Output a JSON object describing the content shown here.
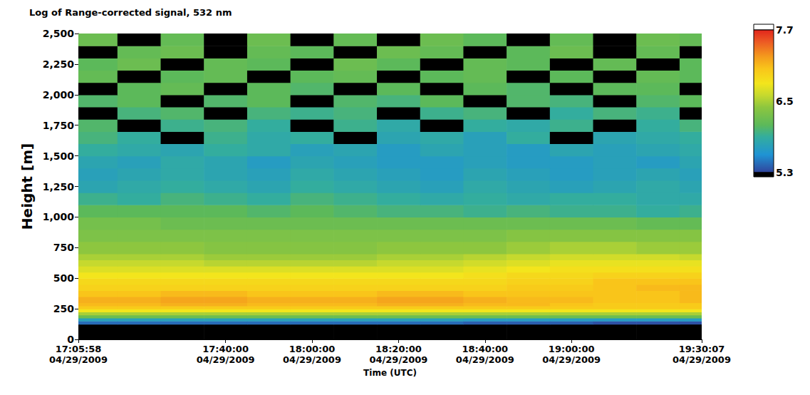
{
  "chart_data": {
    "type": "heatmap",
    "title": "Log of Range-corrected signal, 532 nm",
    "x_label": "Time (UTC)",
    "y_label": "Height [m]",
    "grid": false,
    "xlim": [
      "2009-04-29T17:05:58Z",
      "2009-04-29T19:30:07Z"
    ],
    "xticks": [
      {
        "value": "2009-04-29T17:05:58Z",
        "label": "17:05:58\n04/29/2009"
      },
      {
        "value": "2009-04-29T17:40:00Z",
        "label": "17:40:00\n04/29/2009"
      },
      {
        "value": "2009-04-29T18:00:00Z",
        "label": "18:00:00\n04/29/2009"
      },
      {
        "value": "2009-04-29T18:20:00Z",
        "label": "18:20:00\n04/29/2009"
      },
      {
        "value": "2009-04-29T18:40:00Z",
        "label": "18:40:00\n04/29/2009"
      },
      {
        "value": "2009-04-29T19:00:00Z",
        "label": "19:00:00\n04/29/2009"
      },
      {
        "value": "2009-04-29T19:30:07Z",
        "label": "19:30:07\n04/29/2009"
      }
    ],
    "ylim": [
      0,
      2500
    ],
    "yticks": [
      0,
      250,
      500,
      750,
      1000,
      1250,
      1500,
      1750,
      2000,
      2250,
      2500
    ],
    "x": [
      "2009-04-29T17:05:58Z",
      "2009-04-29T17:15:00Z",
      "2009-04-29T17:25:00Z",
      "2009-04-29T17:35:00Z",
      "2009-04-29T17:45:00Z",
      "2009-04-29T17:55:00Z",
      "2009-04-29T18:05:00Z",
      "2009-04-29T18:15:00Z",
      "2009-04-29T18:25:00Z",
      "2009-04-29T18:35:00Z",
      "2009-04-29T18:45:00Z",
      "2009-04-29T18:55:00Z",
      "2009-04-29T19:05:00Z",
      "2009-04-29T19:15:00Z",
      "2009-04-29T19:25:00Z"
    ],
    "y": [
      0,
      125,
      150,
      175,
      200,
      225,
      250,
      275,
      300,
      350,
      400,
      450,
      500,
      550,
      600,
      650,
      700,
      800,
      900,
      1000,
      1100,
      1200,
      1300,
      1400,
      1500,
      1600,
      1700,
      1800,
      1900,
      2000,
      2100,
      2200,
      2300,
      2400
    ],
    "cells": [
      [
        5.0,
        5.0,
        5.0,
        5.0,
        5.0,
        5.0,
        5.0,
        5.0,
        5.0,
        5.0,
        5.0,
        5.0,
        5.0,
        5.0,
        5.0
      ],
      [
        5.45,
        5.45,
        5.45,
        5.45,
        5.45,
        5.45,
        5.45,
        5.45,
        5.45,
        5.4,
        5.4,
        5.4,
        5.35,
        5.35,
        5.35
      ],
      [
        5.75,
        5.75,
        5.75,
        5.75,
        5.75,
        5.75,
        5.75,
        5.75,
        5.75,
        5.7,
        5.7,
        5.7,
        5.7,
        5.7,
        5.7
      ],
      [
        6.2,
        6.2,
        6.2,
        6.2,
        6.2,
        6.2,
        6.2,
        6.2,
        6.2,
        6.2,
        6.2,
        6.2,
        6.2,
        6.2,
        6.2
      ],
      [
        6.5,
        6.5,
        6.5,
        6.5,
        6.5,
        6.5,
        6.5,
        6.5,
        6.5,
        6.5,
        6.5,
        6.5,
        6.5,
        6.5,
        6.5
      ],
      [
        6.8,
        6.8,
        6.8,
        6.8,
        6.8,
        6.8,
        6.8,
        6.8,
        6.8,
        6.8,
        6.8,
        6.8,
        6.8,
        6.8,
        6.8
      ],
      [
        7.0,
        7.0,
        7.0,
        7.0,
        7.0,
        7.0,
        7.0,
        7.0,
        7.0,
        7.0,
        7.0,
        7.0,
        7.0,
        7.0,
        7.0
      ],
      [
        7.1,
        7.1,
        7.15,
        7.15,
        7.1,
        7.1,
        7.1,
        7.15,
        7.15,
        7.1,
        7.1,
        7.05,
        7.0,
        7.0,
        7.0
      ],
      [
        7.15,
        7.15,
        7.2,
        7.2,
        7.15,
        7.15,
        7.15,
        7.2,
        7.2,
        7.15,
        7.1,
        7.1,
        7.05,
        7.05,
        7.1
      ],
      [
        7.05,
        7.05,
        7.1,
        7.1,
        7.05,
        7.05,
        7.05,
        7.1,
        7.1,
        7.05,
        7.05,
        7.05,
        7.05,
        7.05,
        7.1
      ],
      [
        6.95,
        6.95,
        6.95,
        6.95,
        6.95,
        6.95,
        6.95,
        6.95,
        6.95,
        6.95,
        7.0,
        7.0,
        7.05,
        7.1,
        7.1
      ],
      [
        6.9,
        6.9,
        6.9,
        6.9,
        6.9,
        6.9,
        6.9,
        6.9,
        6.9,
        6.9,
        6.95,
        6.95,
        7.05,
        7.05,
        7.05
      ],
      [
        6.8,
        6.8,
        6.8,
        6.8,
        6.8,
        6.8,
        6.8,
        6.8,
        6.8,
        6.85,
        6.9,
        6.9,
        6.95,
        6.95,
        6.95
      ],
      [
        6.7,
        6.7,
        6.7,
        6.7,
        6.7,
        6.7,
        6.7,
        6.7,
        6.7,
        6.75,
        6.8,
        6.85,
        6.85,
        6.85,
        6.85
      ],
      [
        6.6,
        6.6,
        6.6,
        6.55,
        6.55,
        6.55,
        6.55,
        6.6,
        6.6,
        6.65,
        6.7,
        6.75,
        6.75,
        6.75,
        6.75
      ],
      [
        6.5,
        6.5,
        6.5,
        6.45,
        6.45,
        6.45,
        6.45,
        6.5,
        6.5,
        6.55,
        6.6,
        6.65,
        6.65,
        6.65,
        6.6
      ],
      [
        6.4,
        6.4,
        6.4,
        6.35,
        6.35,
        6.35,
        6.35,
        6.4,
        6.4,
        6.4,
        6.45,
        6.5,
        6.5,
        6.45,
        6.45
      ],
      [
        6.3,
        6.3,
        6.3,
        6.3,
        6.3,
        6.3,
        6.3,
        6.3,
        6.3,
        6.3,
        6.35,
        6.35,
        6.35,
        6.35,
        6.35
      ],
      [
        6.25,
        6.25,
        6.2,
        6.2,
        6.2,
        6.2,
        6.2,
        6.2,
        6.2,
        6.2,
        6.2,
        6.2,
        6.2,
        6.15,
        6.15
      ],
      [
        6.1,
        6.1,
        6.1,
        6.1,
        6.05,
        6.1,
        6.05,
        6.0,
        6.0,
        5.95,
        6.0,
        5.95,
        5.95,
        5.9,
        5.95
      ],
      [
        5.95,
        5.9,
        6.0,
        5.95,
        5.9,
        6.0,
        5.95,
        5.9,
        5.85,
        5.9,
        5.85,
        5.9,
        5.9,
        5.85,
        5.85
      ],
      [
        5.8,
        5.85,
        5.9,
        5.85,
        5.8,
        5.9,
        5.85,
        5.8,
        5.75,
        5.85,
        5.8,
        5.75,
        5.8,
        5.85,
        5.8
      ],
      [
        5.75,
        5.8,
        5.85,
        5.8,
        5.75,
        5.85,
        5.8,
        5.75,
        5.7,
        5.8,
        5.75,
        5.7,
        5.75,
        5.8,
        5.75
      ],
      [
        5.8,
        5.75,
        5.85,
        5.8,
        5.7,
        5.8,
        5.75,
        5.7,
        5.7,
        5.75,
        5.7,
        5.7,
        5.75,
        5.7,
        5.8
      ],
      [
        5.9,
        5.85,
        5.8,
        5.9,
        5.85,
        5.75,
        5.8,
        5.7,
        5.8,
        5.75,
        5.7,
        5.8,
        5.75,
        5.8,
        5.85
      ],
      [
        6.0,
        5.9,
        5.2,
        5.95,
        5.85,
        5.9,
        5.2,
        5.8,
        5.85,
        5.75,
        5.9,
        5.2,
        5.8,
        5.85,
        5.9
      ],
      [
        6.05,
        5.2,
        5.95,
        6.0,
        5.9,
        5.2,
        5.95,
        5.85,
        5.2,
        5.9,
        5.85,
        5.95,
        5.2,
        5.9,
        6.0
      ],
      [
        5.2,
        6.0,
        6.05,
        5.2,
        6.0,
        5.95,
        6.0,
        5.2,
        5.95,
        6.0,
        5.2,
        5.9,
        6.0,
        5.95,
        5.2
      ],
      [
        6.05,
        6.1,
        5.2,
        6.05,
        6.1,
        5.2,
        6.05,
        6.0,
        6.1,
        5.2,
        6.05,
        6.0,
        5.2,
        6.05,
        6.1
      ],
      [
        5.2,
        6.1,
        6.15,
        5.2,
        6.1,
        6.05,
        5.2,
        6.1,
        5.2,
        6.1,
        6.05,
        5.2,
        6.1,
        6.1,
        5.2
      ],
      [
        6.15,
        5.2,
        6.1,
        6.15,
        5.2,
        6.1,
        6.15,
        5.2,
        6.1,
        6.15,
        5.2,
        6.1,
        5.2,
        6.15,
        6.1
      ],
      [
        6.1,
        6.2,
        5.2,
        6.15,
        6.1,
        5.2,
        6.2,
        6.1,
        5.2,
        6.15,
        6.1,
        5.2,
        6.15,
        5.2,
        6.1
      ],
      [
        5.2,
        6.15,
        6.2,
        5.2,
        6.15,
        6.1,
        5.2,
        6.2,
        6.15,
        5.2,
        6.1,
        6.2,
        5.2,
        6.15,
        5.2
      ],
      [
        6.2,
        5.2,
        6.15,
        5.2,
        6.2,
        5.2,
        6.15,
        5.2,
        6.2,
        6.1,
        5.2,
        6.15,
        5.2,
        6.2,
        6.15
      ]
    ],
    "colorbar": {
      "range": [
        5.3,
        7.7
      ],
      "ticks": [
        5.3,
        6.5,
        7.7
      ]
    }
  }
}
